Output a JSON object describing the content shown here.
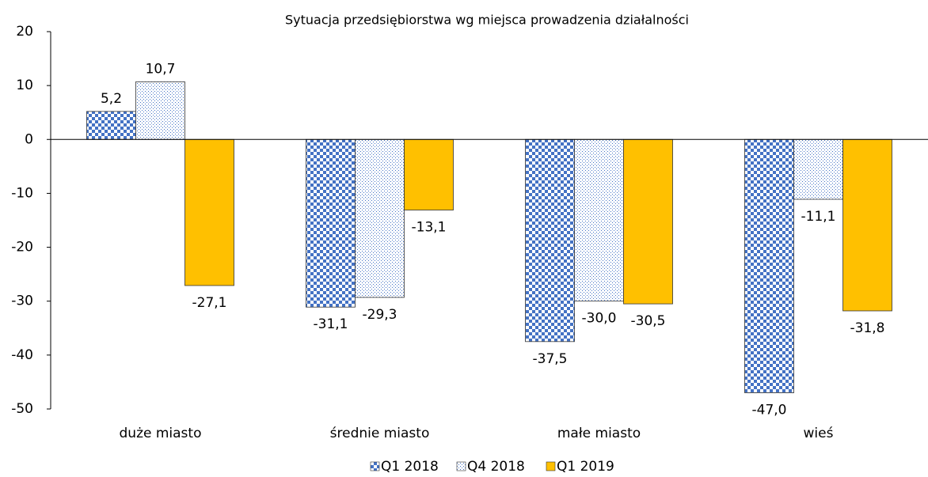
{
  "chart_data": {
    "type": "bar",
    "title": "Sytuacja przedsiębiorstwa wg miejsca prowadzenia działalności",
    "categories": [
      "duże miasto",
      "średnie miasto",
      "małe miasto",
      "wieś"
    ],
    "series": [
      {
        "name": "Q1 2018",
        "color": "#4472c4",
        "pattern": "checkerboard",
        "values": [
          5.2,
          -31.1,
          -37.5,
          -47.0
        ],
        "value_labels": [
          "5,2",
          "-31,1",
          "-37,5",
          "-47,0"
        ]
      },
      {
        "name": "Q4 2018",
        "color": "#4472c4",
        "pattern": "dots",
        "values": [
          10.7,
          -29.3,
          -30.0,
          -11.1
        ],
        "value_labels": [
          "10,7",
          "-29,3",
          "-30,0",
          "-11,1"
        ]
      },
      {
        "name": "Q1 2019",
        "color": "#ffc000",
        "pattern": "solid",
        "values": [
          -27.1,
          -13.1,
          -30.5,
          -31.8
        ],
        "value_labels": [
          "-27,1",
          "-13,1",
          "-30,5",
          "-31,8"
        ]
      }
    ],
    "ylim": [
      -50,
      20
    ],
    "yticks": [
      -50,
      -40,
      -30,
      -20,
      -10,
      0,
      10,
      20
    ],
    "grid": false,
    "legend": "bottom"
  }
}
